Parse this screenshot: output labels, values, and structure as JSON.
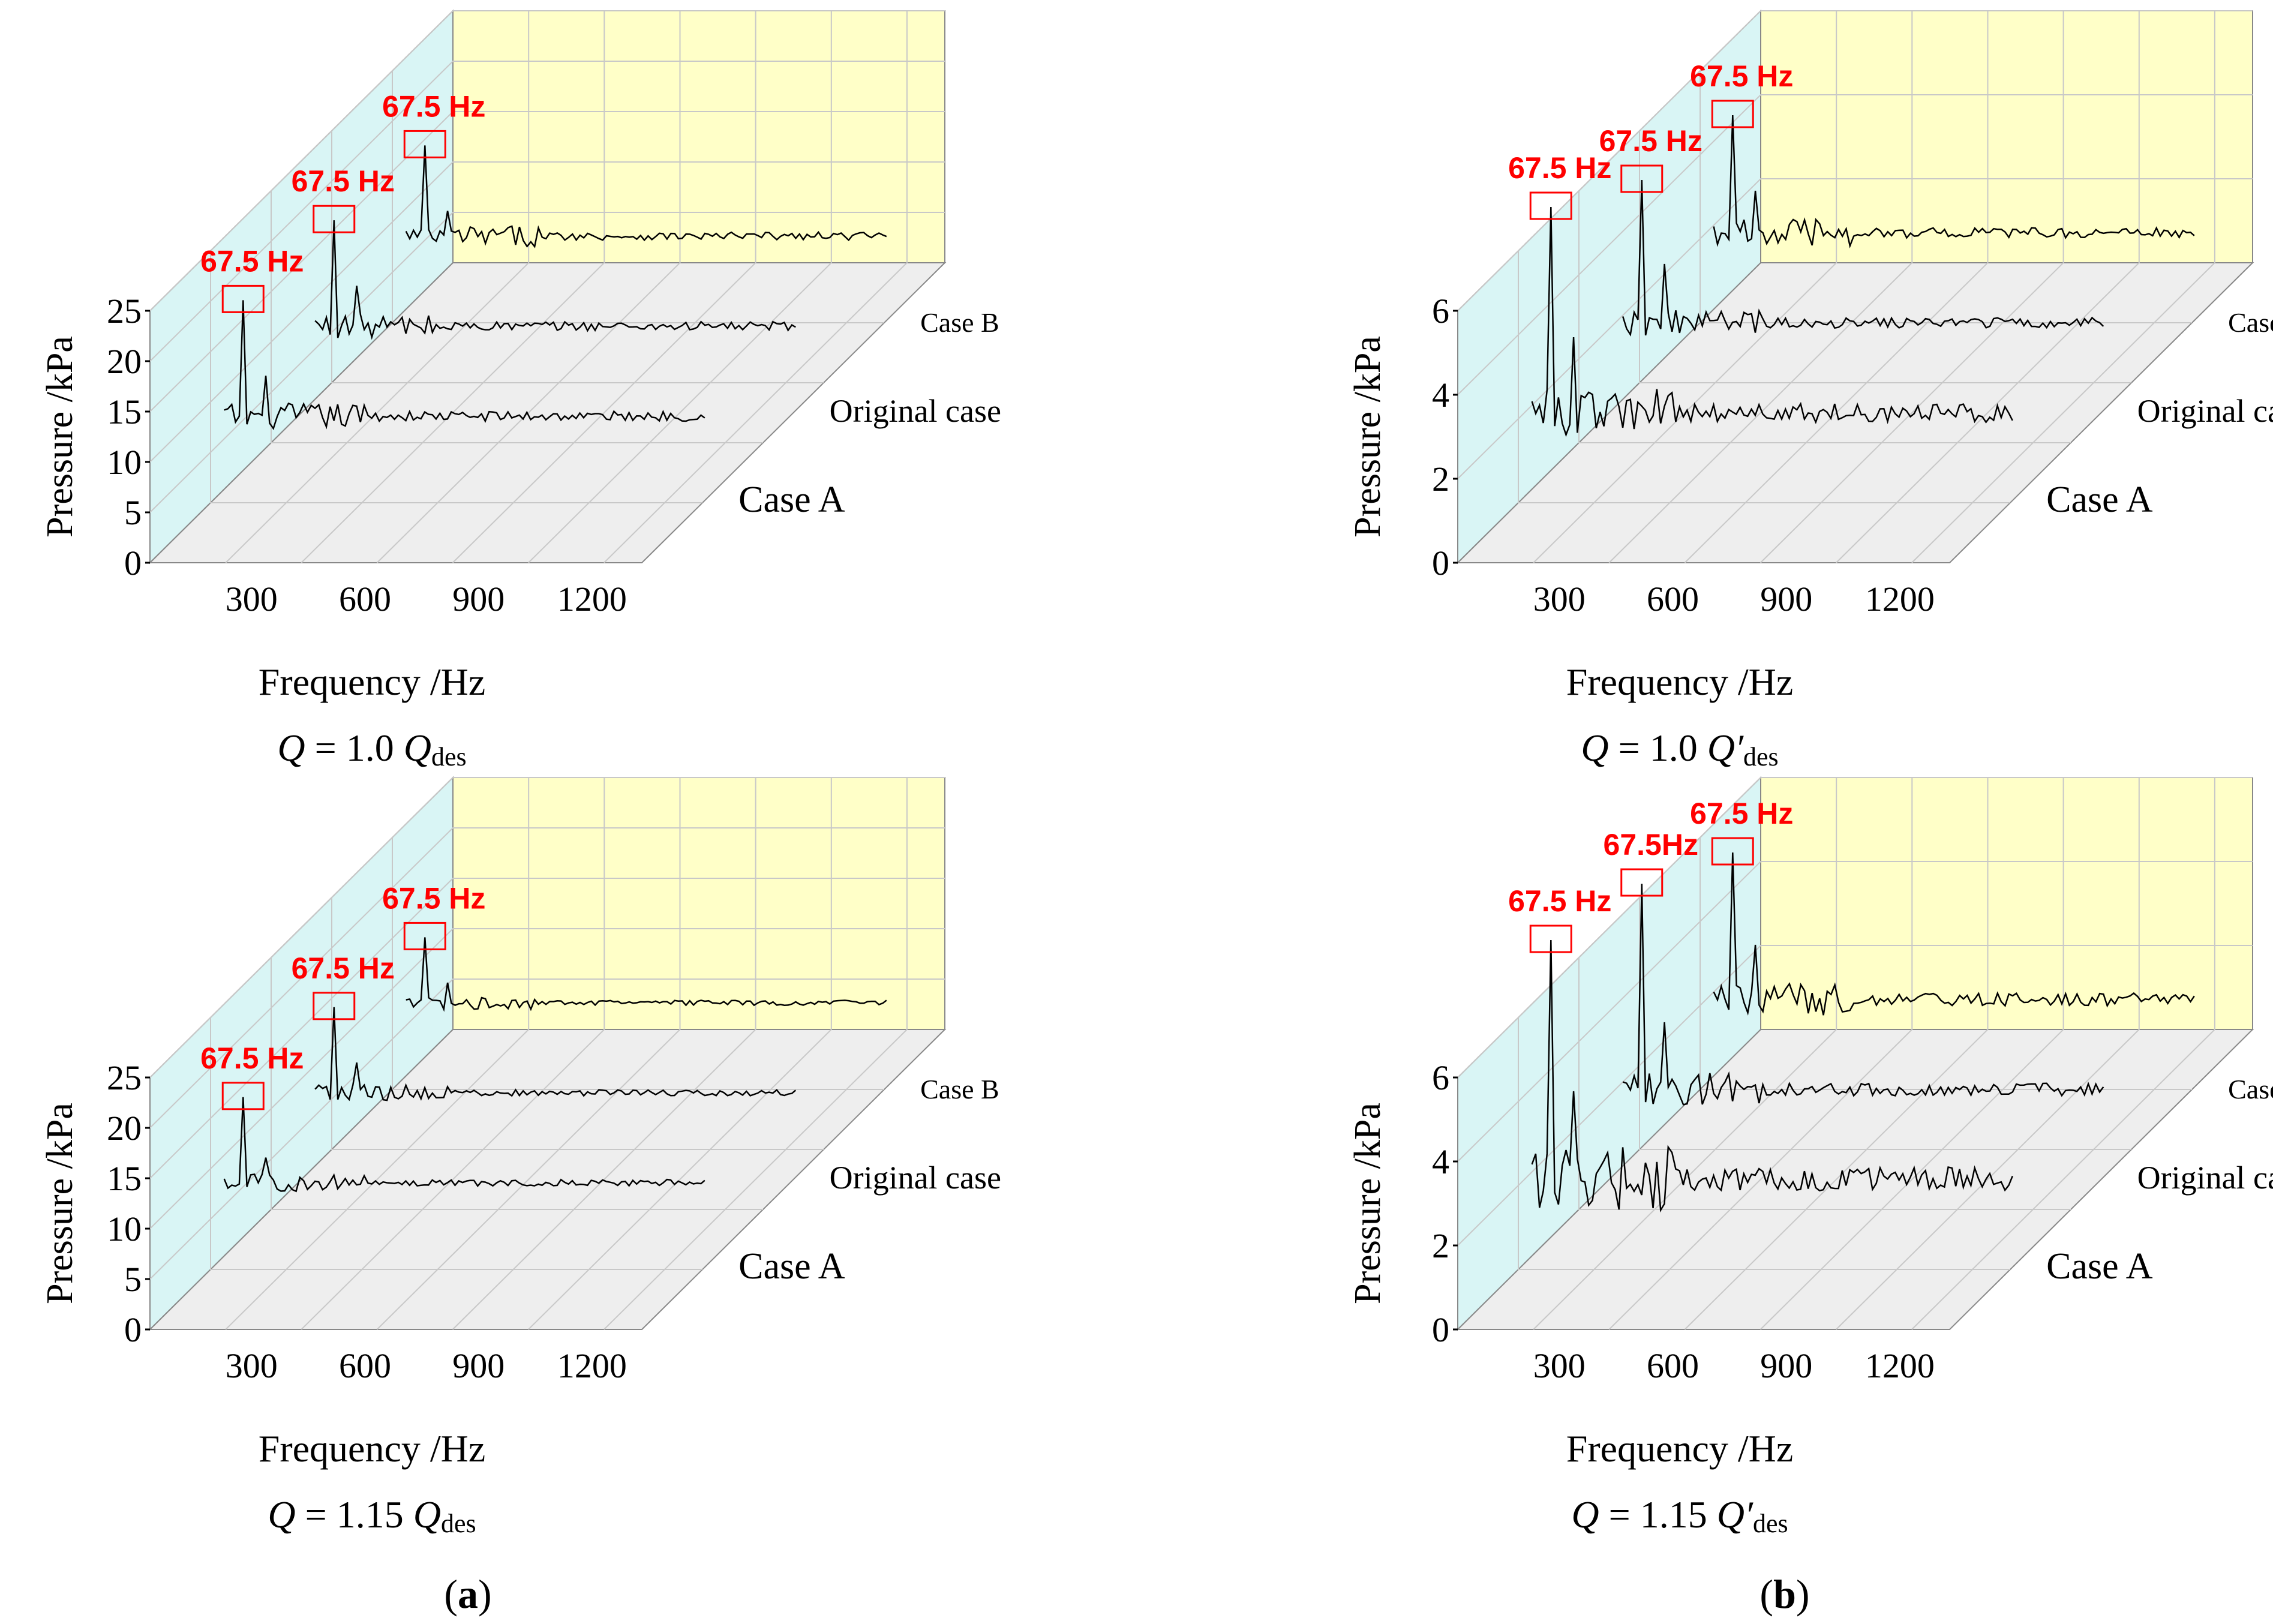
{
  "figure": {
    "panel_labels": [
      {
        "open": "(",
        "letter": "a",
        "close": ")"
      },
      {
        "open": "(",
        "letter": "b",
        "close": ")"
      }
    ]
  },
  "colors": {
    "back_wall": "#ffffc8",
    "side_wall": "#d9f5f5",
    "floor": "#eeeeee",
    "grid": "#c8c8c8",
    "line": "#000000",
    "highlight": "#ff0000"
  },
  "chart_data": [
    {
      "type": "line",
      "panel": "a",
      "subplot": "top",
      "title_prefix": "Q",
      "title_mid": " = 1.0 ",
      "title_var": "Q",
      "title_sub": "des",
      "xlabel": "Frequency /Hz",
      "ylabel": "Pressure /kPa",
      "xticks": [
        "300",
        "600",
        "900",
        "1200"
      ],
      "yticks": [
        "0",
        "5",
        "10",
        "15",
        "20",
        "25"
      ],
      "ylim": [
        0,
        25
      ],
      "xlim": [
        0,
        1300
      ],
      "peak_frequency": 67.5,
      "series": [
        {
          "name": "Case A",
          "baseline": 8,
          "peak_value": 19.5,
          "peak_label": "67.5 Hz",
          "second_peak": 12,
          "noise": 2.0
        },
        {
          "name": "Original case",
          "baseline": 8,
          "peak_value": 18.5,
          "peak_label": "67.5 Hz",
          "second_peak": 12,
          "noise": 1.8
        },
        {
          "name": "Case B",
          "baseline": 8,
          "peak_value": 17,
          "peak_label": "67.5 Hz",
          "second_peak": 10.5,
          "noise": 1.6
        }
      ]
    },
    {
      "type": "line",
      "panel": "b",
      "subplot": "top",
      "title_prefix": "Q",
      "title_mid": " = 1.0 ",
      "title_var": "Q′",
      "title_sub": "des",
      "xlabel": "Frequency /Hz",
      "ylabel": "Pressure /kPa",
      "xticks": [
        "300",
        "600",
        "900",
        "1200"
      ],
      "yticks": [
        "0",
        "2",
        "4",
        "6"
      ],
      "ylim": [
        0,
        6
      ],
      "xlim": [
        0,
        1300
      ],
      "peak_frequency": 67.5,
      "series": [
        {
          "name": "Case A",
          "baseline": 2,
          "peak_value": 6.9,
          "peak_label": "67.5 Hz",
          "second_peak": 3.8,
          "noise": 0.9
        },
        {
          "name": "Original case",
          "baseline": 2,
          "peak_value": 5.4,
          "peak_label": "67.5 Hz",
          "second_peak": 3.4,
          "noise": 0.5
        },
        {
          "name": "Case B",
          "baseline": 2,
          "peak_value": 4.8,
          "peak_label": "67.5 Hz",
          "second_peak": 3.0,
          "noise": 0.5
        }
      ]
    },
    {
      "type": "line",
      "panel": "a",
      "subplot": "bottom",
      "title_prefix": "Q",
      "title_mid": " = 1.15 ",
      "title_var": "Q",
      "title_sub": "des",
      "xlabel": "Frequency /Hz",
      "ylabel": "Pressure /kPa",
      "xticks": [
        "300",
        "600",
        "900",
        "1200"
      ],
      "yticks": [
        "0",
        "5",
        "10",
        "15",
        "20",
        "25"
      ],
      "ylim": [
        0,
        25
      ],
      "xlim": [
        0,
        1300
      ],
      "peak_frequency": 67.5,
      "series": [
        {
          "name": "Case A",
          "baseline": 8,
          "peak_value": 16.5,
          "peak_label": "67.5 Hz",
          "second_peak": 10.5,
          "noise": 1.3
        },
        {
          "name": "Original case",
          "baseline": 8,
          "peak_value": 16.5,
          "peak_label": "67.5 Hz",
          "second_peak": 11,
          "noise": 1.2
        },
        {
          "name": "Case B",
          "baseline": 8,
          "peak_value": 14.5,
          "peak_label": "67.5 Hz",
          "second_peak": 10,
          "noise": 1.0
        }
      ]
    },
    {
      "type": "line",
      "panel": "b",
      "subplot": "bottom",
      "title_prefix": "Q",
      "title_mid": " = 1.15 ",
      "title_var": "Q′",
      "title_sub": "des",
      "xlabel": "Frequency /Hz",
      "ylabel": "Pressure /kPa",
      "xticks": [
        "300",
        "600",
        "900",
        "1200"
      ],
      "yticks": [
        "0",
        "2",
        "4",
        "6"
      ],
      "ylim": [
        0,
        6
      ],
      "xlim": [
        0,
        1300
      ],
      "peak_frequency": 67.5,
      "series": [
        {
          "name": "Case A",
          "baseline": 2,
          "peak_value": 7.7,
          "peak_label": "67.5 Hz",
          "second_peak": 4.1,
          "noise": 1.2
        },
        {
          "name": "Original case",
          "baseline": 2,
          "peak_value": 6.9,
          "peak_label": "67.5Hz",
          "second_peak": 3.6,
          "noise": 0.6
        },
        {
          "name": "Case B",
          "baseline": 2,
          "peak_value": 5.5,
          "peak_label": "67.5 Hz",
          "second_peak": 3.3,
          "noise": 0.6
        }
      ]
    }
  ]
}
